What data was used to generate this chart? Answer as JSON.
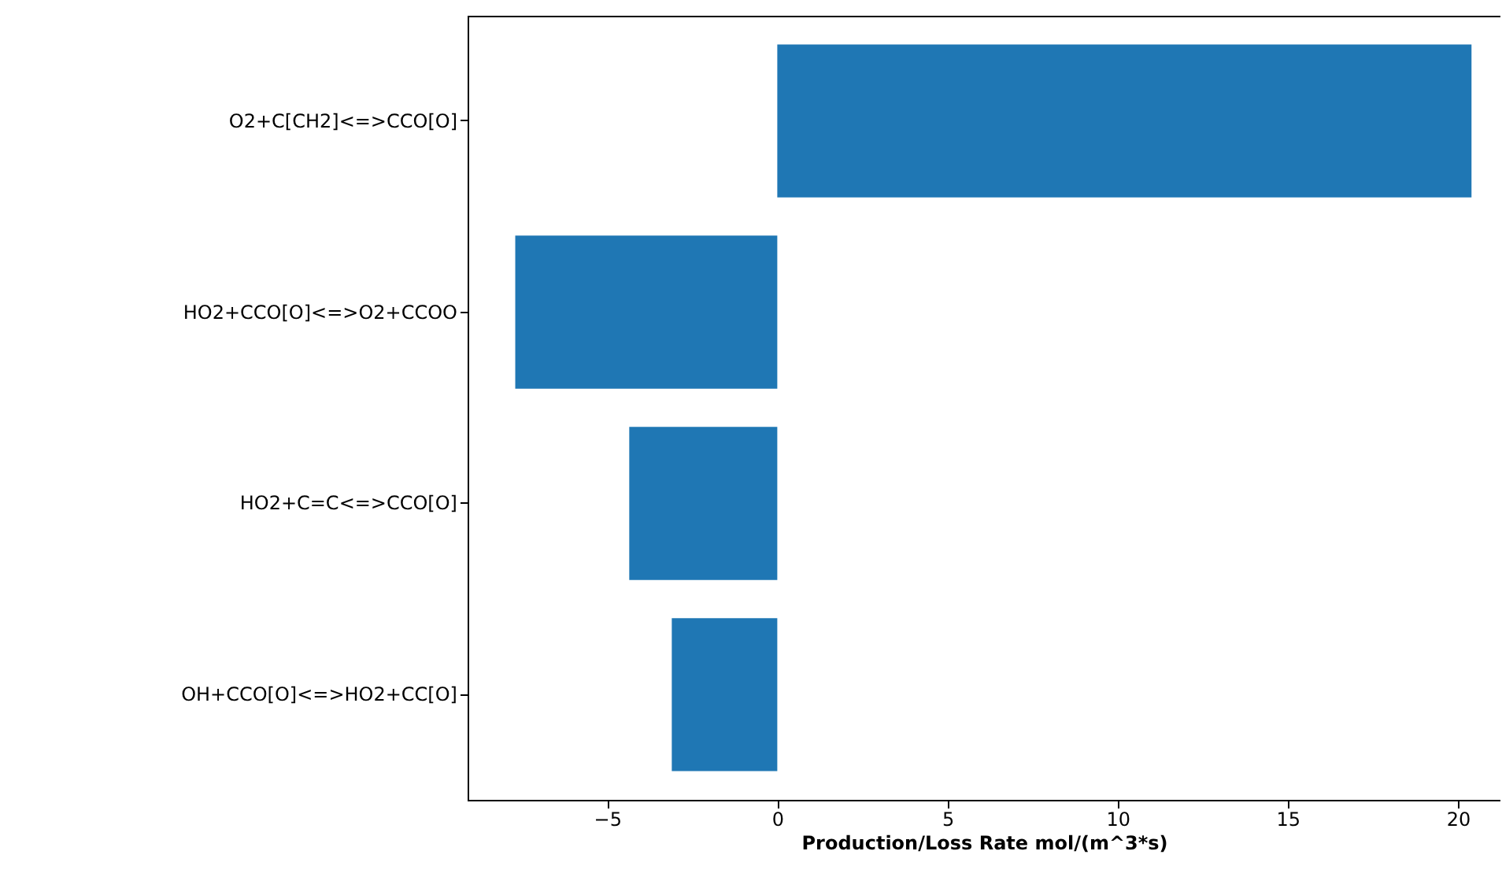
{
  "chart_data": {
    "type": "bar",
    "orientation": "horizontal",
    "categories": [
      "O2+C[CH2]<=>CCO[O]",
      "HO2+CCO[O]<=>O2+CCOO",
      "HO2+C=C<=>CCO[O]",
      "OH+CCO[O]<=>HO2+CC[O]"
    ],
    "values": [
      20.4,
      -7.7,
      -4.35,
      -3.1
    ],
    "color": "#1f77b4",
    "xlim": [
      -9.1,
      21.25
    ],
    "xticks": [
      -5,
      0,
      5,
      10,
      15,
      20
    ],
    "xlabel": "Production/Loss Rate mol/(m^3*s)",
    "grid": false
  }
}
